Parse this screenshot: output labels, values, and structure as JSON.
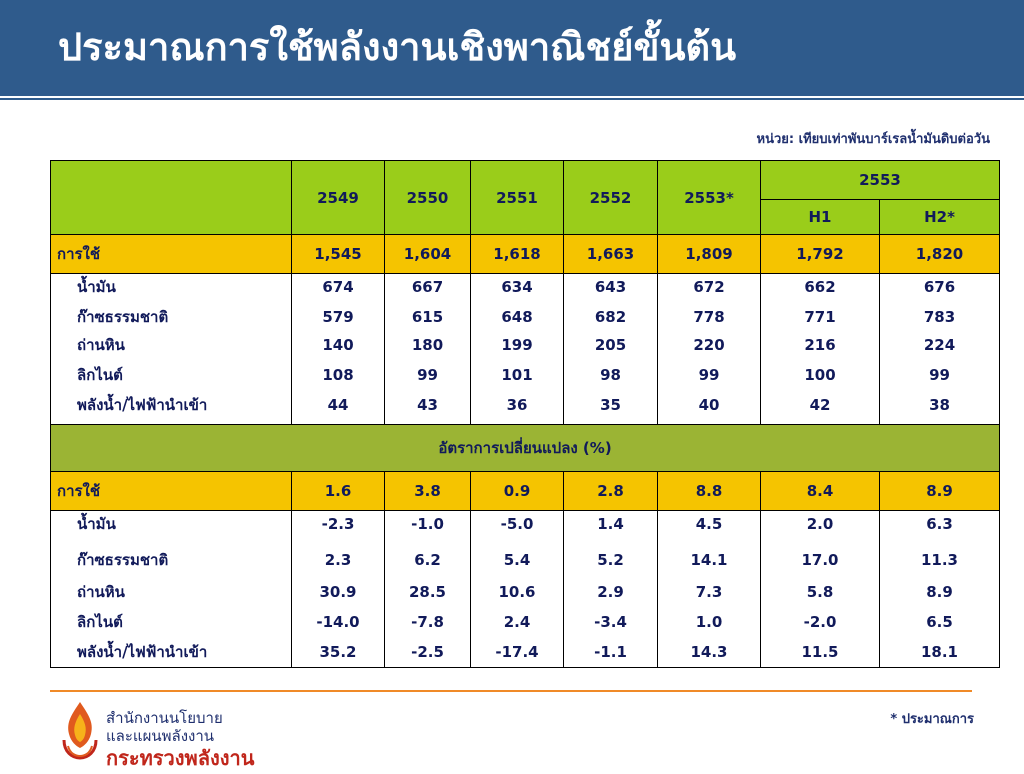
{
  "title": "ประมาณการใช้พลังงานเชิงพาณิชย์ขั้นต้น",
  "unit_note": "หน่วย: เทียบเท่าพันบาร์เรลน้ำมันดิบต่อวัน",
  "table": {
    "years": [
      "2549",
      "2550",
      "2551",
      "2552",
      "2553*"
    ],
    "group_header": "2553",
    "halves": [
      "H1",
      "H2*"
    ],
    "total_label": "การใช้",
    "consumption_total": [
      "1,545",
      "1,604",
      "1,618",
      "1,663",
      "1,809",
      "1,792",
      "1,820"
    ],
    "row_labels": [
      "น้ำมัน",
      "ก๊าซธรรมชาติ",
      "ถ่านหิน",
      "ลิกไนต์",
      "พลังน้ำ/ไฟฟ้านำเข้า"
    ],
    "consumption_rows": [
      [
        "674",
        "667",
        "634",
        "643",
        "672",
        "662",
        "676"
      ],
      [
        "579",
        "615",
        "648",
        "682",
        "778",
        "771",
        "783"
      ],
      [
        "140",
        "180",
        "199",
        "205",
        "220",
        "216",
        "224"
      ],
      [
        "108",
        "99",
        "101",
        "98",
        "99",
        "100",
        "99"
      ],
      [
        "44",
        "43",
        "36",
        "35",
        "40",
        "42",
        "38"
      ]
    ],
    "change_section_label": "อัตราการเปลี่ยนแปลง (%)",
    "change_total": [
      "1.6",
      "3.8",
      "0.9",
      "2.8",
      "8.8",
      "8.4",
      "8.9"
    ],
    "change_rows": [
      [
        "-2.3",
        "-1.0",
        "-5.0",
        "1.4",
        "4.5",
        "2.0",
        "6.3"
      ],
      [
        "2.3",
        "6.2",
        "5.4",
        "5.2",
        "14.1",
        "17.0",
        "11.3"
      ],
      [
        "30.9",
        "28.5",
        "10.6",
        "2.9",
        "7.3",
        "5.8",
        "8.9"
      ],
      [
        "-14.0",
        "-7.8",
        "2.4",
        "-3.4",
        "1.0",
        "-2.0",
        "6.5"
      ],
      [
        "35.2",
        "-2.5",
        "-17.4",
        "-1.1",
        "14.3",
        "11.5",
        "18.1"
      ]
    ]
  },
  "footnote": "* ประมาณการ",
  "org": {
    "line1": "สำนักงานนโยบาย",
    "line2": "และแผนพลังงาน",
    "line3": "กระทรวงพลังงาน"
  },
  "colors": {
    "title_bar": "#2f5b8c",
    "header_green": "#9acd1a",
    "total_yellow": "#f5c400",
    "section_olive": "#9bb434",
    "rule_orange": "#f08a28",
    "ministry_red": "#c0261b"
  },
  "icons": {
    "logo": "flame-logo-icon"
  }
}
